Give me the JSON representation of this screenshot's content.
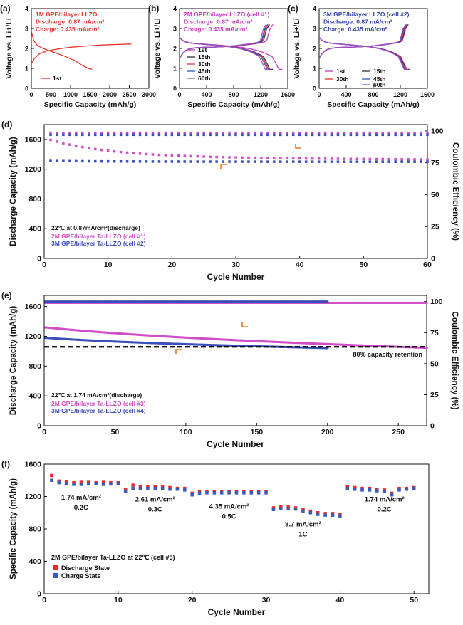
{
  "chart_data": [
    {
      "id": "a",
      "type": "line",
      "panel_label": "(a)",
      "xlabel": "Specific Capacity (mAh/g)",
      "ylabel": "Voltage vs. Li+/Li",
      "xlim": [
        0,
        3000
      ],
      "ylim": [
        0,
        4
      ],
      "xticks": [
        0,
        500,
        1000,
        1500,
        2000,
        2500,
        3000
      ],
      "yticks": [
        0,
        1,
        2,
        3,
        4
      ],
      "annotation_lines": [
        "1M GPE/bilayer LLZO",
        "Discharge: 0.87 mA/cm²",
        "Charge: 0.435 mA/cm²"
      ],
      "annotation_color": "#e8312a",
      "legend": [
        {
          "label": "1st",
          "color": "#e8312a"
        }
      ],
      "series": [
        {
          "name": "1st",
          "color": "#e8312a",
          "points": [
            [
              0,
              2.85
            ],
            [
              60,
              2.4
            ],
            [
              150,
              2.15
            ],
            [
              300,
              2.0
            ],
            [
              500,
              1.85
            ],
            [
              800,
              1.65
            ],
            [
              1100,
              1.4
            ],
            [
              1300,
              1.15
            ],
            [
              1450,
              1.0
            ],
            [
              1550,
              0.95
            ]
          ]
        },
        {
          "name": "1st",
          "color": "#e8312a",
          "points": [
            [
              0,
              1.25
            ],
            [
              80,
              1.5
            ],
            [
              200,
              1.72
            ],
            [
              400,
              1.88
            ],
            [
              700,
              1.98
            ],
            [
              1000,
              2.06
            ],
            [
              1400,
              2.12
            ],
            [
              1800,
              2.17
            ],
            [
              2200,
              2.2
            ],
            [
              2550,
              2.22
            ]
          ]
        }
      ]
    },
    {
      "id": "b",
      "type": "line",
      "panel_label": "(b)",
      "xlabel": "Specific Capacity (mAh/g)",
      "ylabel": "Voltage vs. Li+/Li",
      "xlim": [
        0,
        1600
      ],
      "ylim": [
        0,
        4
      ],
      "xticks": [
        0,
        400,
        800,
        1200,
        1600
      ],
      "yticks": [
        0,
        1,
        2,
        3,
        4
      ],
      "annotation_lines": [
        "2M GPE/bilayer LLZO (cell #1)",
        "Discharge: 0.87 mA/cm²",
        "Charge: 0.435 mA/cm²"
      ],
      "annotation_color": "#c83cc0",
      "legend": [
        {
          "label": "1st",
          "color": "#c83cc0"
        },
        {
          "label": "15th",
          "color": "#333333"
        },
        {
          "label": "30th",
          "color": "#e8312a"
        },
        {
          "label": "45th",
          "color": "#3355bb"
        },
        {
          "label": "60th",
          "color": "#a050c8"
        }
      ],
      "dis_end": [
        1520,
        1380,
        1360,
        1340,
        1310
      ],
      "ch_end": [
        1380,
        1330,
        1310,
        1300,
        1280
      ]
    },
    {
      "id": "c",
      "type": "line",
      "panel_label": "(c)",
      "xlabel": "Specific Capacity (mAh/g)",
      "ylabel": "Voltage vs. Li+/Li",
      "xlim": [
        0,
        1600
      ],
      "ylim": [
        0,
        4
      ],
      "xticks": [
        0,
        400,
        800,
        1200,
        1600
      ],
      "yticks": [
        0,
        1,
        2,
        3,
        4
      ],
      "annotation_lines": [
        "3M GPE/bilayer LLZO (cell #2)",
        "Discharge: 0.87 mA/cm²",
        "Charge: 0.435 mA/cm²"
      ],
      "annotation_color": "#3344aa",
      "legend": [
        {
          "label": "1st",
          "color": "#c83cc0"
        },
        {
          "label": "15th",
          "color": "#333333"
        },
        {
          "label": "30th",
          "color": "#e8312a"
        },
        {
          "label": "45th",
          "color": "#3355bb"
        },
        {
          "label": "60th",
          "color": "#a050c8"
        }
      ],
      "dis_end": [
        1340,
        1330,
        1320,
        1310,
        1300
      ],
      "ch_end": [
        1320,
        1310,
        1300,
        1290,
        1280
      ]
    },
    {
      "id": "d",
      "type": "scatter",
      "panel_label": "(d)",
      "xlabel": "Cycle Number",
      "ylabel": "Discharge Capacity (mAh/g)",
      "y2label": "Coulombic Efficiency (%)",
      "xlim": [
        0,
        60
      ],
      "ylim": [
        0,
        1800
      ],
      "y2lim": [
        0,
        105
      ],
      "xticks": [
        0,
        10,
        20,
        30,
        40,
        50,
        60
      ],
      "yticks": [
        0,
        400,
        800,
        1200,
        1600
      ],
      "y2ticks": [
        0,
        25,
        50,
        75,
        100
      ],
      "notes": [
        "22℃ at 0.87mA/cm²(discharge)"
      ],
      "legend": [
        {
          "label": "2M GPE/bilayer Ta-LLZO (cell #1)",
          "color": "#d04ec8"
        },
        {
          "label": "3M GPE/bilayer Ta-LLZO (cell #2)",
          "color": "#3a4fbb"
        }
      ],
      "series": [
        {
          "name": "2M GPE/bilayer Ta-LLZO (cell #1)",
          "color": "#d04ec8",
          "cycles": 60,
          "cap_start": 1560,
          "cap_end": 1330,
          "ce": 98.5
        },
        {
          "name": "3M GPE/bilayer Ta-LLZO (cell #2)",
          "color": "#3a4fbb",
          "cycles": 60,
          "cap_start": 1310,
          "cap_end": 1300,
          "ce": 97.0
        }
      ]
    },
    {
      "id": "e",
      "type": "scatter",
      "panel_label": "(e)",
      "xlabel": "Cycle Number",
      "ylabel": "Discharge Capacity (mAh/g)",
      "y2label": "Coulombic Efficiency (%)",
      "xlim": [
        0,
        270
      ],
      "ylim": [
        0,
        1750
      ],
      "y2lim": [
        0,
        105
      ],
      "xticks": [
        0,
        50,
        100,
        150,
        200,
        250
      ],
      "yticks": [
        0,
        400,
        800,
        1200,
        1600
      ],
      "y2ticks": [
        0,
        25,
        50,
        75,
        100
      ],
      "notes": [
        "22℃ at 1.74 mA/cm²(discharge)"
      ],
      "retention_line": {
        "value": 1060,
        "label": "80% capacity retention"
      },
      "legend": [
        {
          "label": "2M GPE/bilayer Ta-LLZO (cell #3)",
          "color": "#d04ec8"
        },
        {
          "label": "3M GPE/bilayer Ta-LLZO (cell #4)",
          "color": "#3a4fbb"
        }
      ],
      "series": [
        {
          "name": "2M GPE/bilayer Ta-LLZO (cell #3)",
          "color": "#d04ec8",
          "cycles": 270,
          "cap_start": 1320,
          "cap_end": 1040,
          "ce": 99.0
        },
        {
          "name": "3M GPE/bilayer Ta-LLZO (cell #4)",
          "color": "#3a4fbb",
          "cycles": 200,
          "cap_start": 1180,
          "cap_end": 1040,
          "ce": 100.0
        }
      ]
    },
    {
      "id": "f",
      "type": "scatter",
      "panel_label": "(f)",
      "xlabel": "Cycle Number",
      "ylabel": "Specific Capacity (mAh/g)",
      "xlim": [
        0,
        52
      ],
      "ylim": [
        0,
        1600
      ],
      "xticks": [
        0,
        10,
        20,
        30,
        40,
        50
      ],
      "yticks": [
        0,
        400,
        800,
        1200,
        1600
      ],
      "notes": [
        "2M GPE/bilayer Ta-LLZO at 22℃ (cell #5)"
      ],
      "legend": [
        {
          "label": "Discharge State",
          "color": "#e82a2a"
        },
        {
          "label": "Charge State",
          "color": "#3a5bbb"
        }
      ],
      "rate_labels": [
        {
          "current": "1.74 mA/cm²",
          "rate": "0.2C",
          "x": 5,
          "y": 1160
        },
        {
          "current": "2.61 mA/cm²",
          "rate": "0.3C",
          "x": 15,
          "y": 1140
        },
        {
          "current": "4.35 mA/cm²",
          "rate": "0.5C",
          "x": 25,
          "y": 1050
        },
        {
          "current": "8.7 mA/cm²",
          "rate": "1C",
          "x": 35,
          "y": 830
        },
        {
          "current": "1.74 mA/cm²",
          "rate": "0.2C",
          "x": 46,
          "y": 1140
        }
      ],
      "discharge": [
        1460,
        1390,
        1380,
        1370,
        1375,
        1375,
        1370,
        1375,
        1370,
        1370,
        1290,
        1340,
        1320,
        1320,
        1320,
        1320,
        1310,
        1300,
        1300,
        1240,
        1260,
        1260,
        1260,
        1260,
        1260,
        1260,
        1260,
        1260,
        1260,
        1260,
        1060,
        1070,
        1070,
        1060,
        1040,
        1020,
        1000,
        990,
        990,
        980,
        1320,
        1310,
        1300,
        1300,
        1290,
        1280,
        1240,
        1300,
        1300,
        1310
      ],
      "charge": [
        1400,
        1370,
        1360,
        1350,
        1350,
        1355,
        1360,
        1350,
        1355,
        1360,
        1260,
        1300,
        1300,
        1300,
        1300,
        1300,
        1290,
        1290,
        1280,
        1220,
        1240,
        1245,
        1245,
        1245,
        1245,
        1245,
        1245,
        1245,
        1245,
        1245,
        1040,
        1050,
        1050,
        1045,
        1020,
        1000,
        980,
        970,
        970,
        960,
        1300,
        1290,
        1280,
        1280,
        1270,
        1260,
        1220,
        1280,
        1290,
        1300
      ]
    }
  ]
}
